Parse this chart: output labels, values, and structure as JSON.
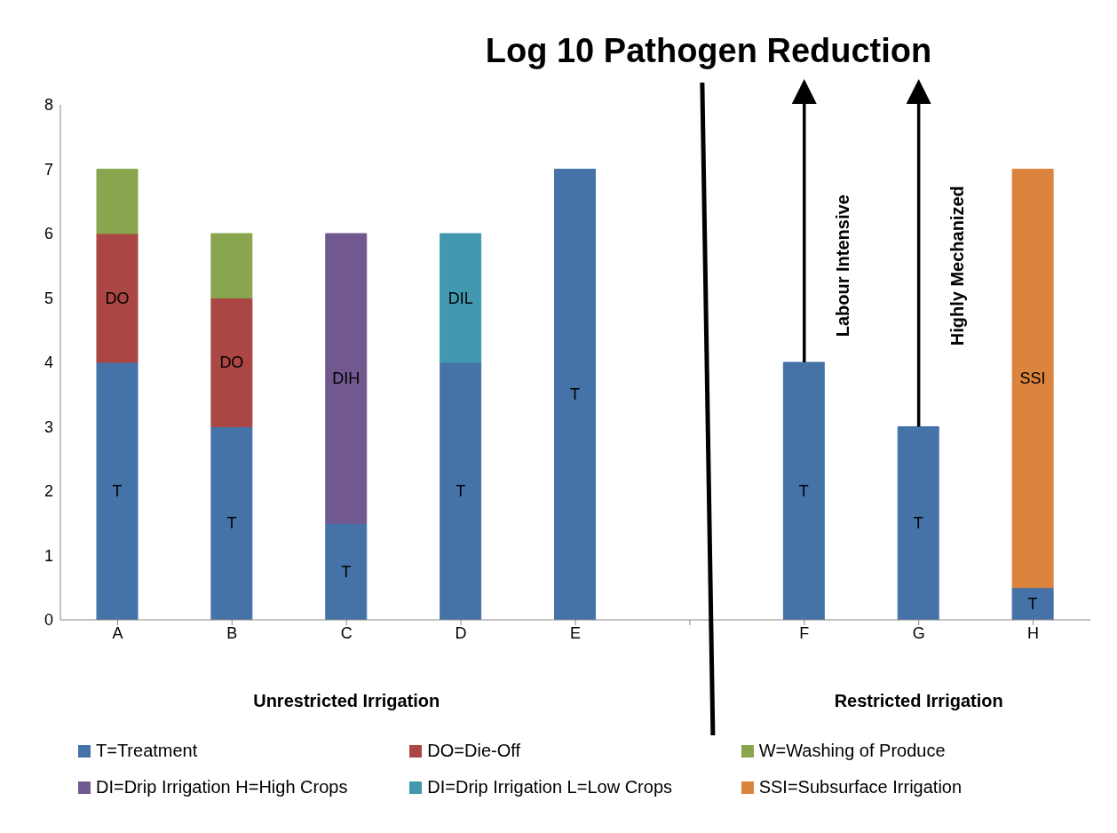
{
  "chart_data": {
    "type": "bar",
    "title": "Log 10 Pathogen Reduction",
    "categories": [
      "A",
      "B",
      "C",
      "D",
      "E",
      null,
      "F",
      "G",
      "H"
    ],
    "stacked": true,
    "ylim": [
      0,
      8
    ],
    "yticks": [
      0,
      1,
      2,
      3,
      4,
      5,
      6,
      7,
      8
    ],
    "grid": false,
    "legend": "bottom",
    "series": [
      {
        "name": "T=Treatment",
        "color": "#4572a7",
        "values": [
          4,
          3,
          1.5,
          4,
          7,
          null,
          4,
          3,
          0.5
        ],
        "value_labels": [
          "T",
          "T",
          "T",
          "T",
          "T",
          null,
          "T",
          "T",
          "T"
        ]
      },
      {
        "name": "DO=Die-Off",
        "color": "#aa4643",
        "values": [
          2,
          2,
          null,
          null,
          null,
          null,
          null,
          null,
          null
        ],
        "value_labels": [
          "DO",
          "DO",
          null,
          null,
          null,
          null,
          null,
          null,
          null
        ]
      },
      {
        "name": "W=Washing of Produce",
        "color": "#89a54e",
        "values": [
          1,
          1,
          null,
          null,
          null,
          null,
          null,
          null,
          null
        ]
      },
      {
        "name": "DI=Drip Irrigation H=High Crops",
        "color": "#71588f",
        "values": [
          null,
          null,
          4.5,
          null,
          null,
          null,
          null,
          null,
          null
        ],
        "value_labels": [
          null,
          null,
          "DIH",
          null,
          null,
          null,
          null,
          null,
          null
        ]
      },
      {
        "name": "DI=Drip Irrigation L=Low Crops",
        "color": "#4198af",
        "values": [
          null,
          null,
          null,
          2,
          null,
          null,
          null,
          null,
          null
        ],
        "value_labels": [
          null,
          null,
          null,
          "DIL",
          null,
          null,
          null,
          null,
          null
        ]
      },
      {
        "name": "SSI=Subsurface Irrigation",
        "color": "#db843d",
        "values": [
          null,
          null,
          null,
          null,
          null,
          null,
          null,
          null,
          6.5
        ],
        "value_labels": [
          null,
          null,
          null,
          null,
          null,
          null,
          null,
          null,
          "SSI"
        ]
      }
    ],
    "annotations": [
      "Unrestricted Irrigation",
      "Restricted Irrigation",
      "Labour Intensive",
      "Highly Mechanized"
    ]
  }
}
